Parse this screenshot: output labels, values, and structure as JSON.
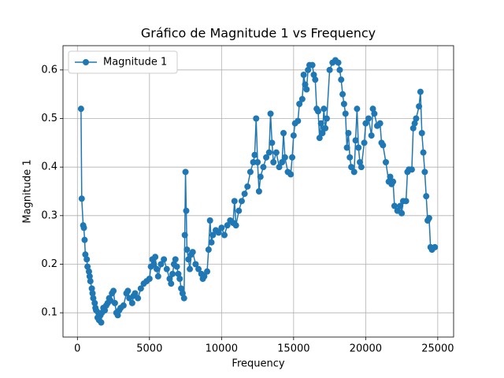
{
  "chart_data": {
    "type": "line",
    "title": "Gráfico de Magnitude 1 vs Frequency",
    "x_label": "Frequency",
    "y_label": "Magnitude 1",
    "x": [
      250,
      300,
      400,
      450,
      500,
      550,
      650,
      700,
      800,
      850,
      900,
      1000,
      1050,
      1100,
      1200,
      1250,
      1300,
      1400,
      1450,
      1500,
      1600,
      1650,
      1700,
      1800,
      1900,
      2000,
      2100,
      2200,
      2300,
      2400,
      2500,
      2600,
      2700,
      2800,
      2900,
      3000,
      3200,
      3400,
      3500,
      3600,
      3800,
      3900,
      4000,
      4200,
      4400,
      4600,
      4800,
      5000,
      5100,
      5200,
      5300,
      5400,
      5500,
      5600,
      5800,
      6000,
      6200,
      6400,
      6500,
      6600,
      6700,
      6800,
      6900,
      7000,
      7100,
      7200,
      7300,
      7400,
      7450,
      7500,
      7550,
      7600,
      7700,
      7800,
      7900,
      8000,
      8200,
      8400,
      8600,
      8700,
      8800,
      9000,
      9100,
      9200,
      9300,
      9400,
      9600,
      9800,
      10000,
      10200,
      10400,
      10600,
      10800,
      10900,
      11000,
      11200,
      11400,
      11600,
      11800,
      12000,
      12200,
      12300,
      12400,
      12500,
      12600,
      12700,
      12900,
      13100,
      13300,
      13400,
      13500,
      13600,
      13800,
      14000,
      14200,
      14300,
      14400,
      14600,
      14800,
      14900,
      15000,
      15100,
      15300,
      15400,
      15600,
      15700,
      15800,
      15900,
      16000,
      16100,
      16300,
      16400,
      16500,
      16600,
      16700,
      16800,
      16900,
      17000,
      17100,
      17200,
      17300,
      17500,
      17700,
      17900,
      18100,
      18200,
      18300,
      18400,
      18500,
      18600,
      18700,
      18800,
      18900,
      19000,
      19200,
      19300,
      19400,
      19500,
      19600,
      19700,
      19900,
      20000,
      20200,
      20400,
      20500,
      20600,
      20800,
      21000,
      21100,
      21200,
      21400,
      21600,
      21700,
      21800,
      21900,
      22000,
      22200,
      22400,
      22500,
      22600,
      22800,
      22900,
      23000,
      23200,
      23300,
      23400,
      23500,
      23700,
      23800,
      23900,
      24000,
      24100,
      24200,
      24300,
      24400,
      24500,
      24600,
      24800
    ],
    "series": [
      {
        "name": "Magnitude 1",
        "color": "#1f77b4",
        "values": [
          0.52,
          0.335,
          0.28,
          0.275,
          0.25,
          0.22,
          0.21,
          0.195,
          0.185,
          0.175,
          0.165,
          0.15,
          0.14,
          0.13,
          0.12,
          0.11,
          0.105,
          0.09,
          0.1,
          0.085,
          0.095,
          0.08,
          0.1,
          0.11,
          0.105,
          0.115,
          0.12,
          0.13,
          0.125,
          0.14,
          0.145,
          0.12,
          0.1,
          0.095,
          0.105,
          0.11,
          0.115,
          0.14,
          0.145,
          0.13,
          0.12,
          0.135,
          0.14,
          0.13,
          0.15,
          0.16,
          0.165,
          0.17,
          0.195,
          0.21,
          0.2,
          0.215,
          0.19,
          0.175,
          0.2,
          0.21,
          0.19,
          0.17,
          0.16,
          0.18,
          0.2,
          0.21,
          0.195,
          0.18,
          0.17,
          0.15,
          0.14,
          0.13,
          0.26,
          0.39,
          0.31,
          0.23,
          0.21,
          0.19,
          0.22,
          0.225,
          0.2,
          0.19,
          0.18,
          0.17,
          0.175,
          0.185,
          0.23,
          0.29,
          0.245,
          0.26,
          0.27,
          0.265,
          0.275,
          0.26,
          0.28,
          0.29,
          0.285,
          0.33,
          0.28,
          0.31,
          0.33,
          0.345,
          0.36,
          0.39,
          0.41,
          0.425,
          0.5,
          0.41,
          0.35,
          0.38,
          0.4,
          0.42,
          0.43,
          0.51,
          0.45,
          0.41,
          0.43,
          0.4,
          0.41,
          0.47,
          0.42,
          0.39,
          0.385,
          0.42,
          0.465,
          0.49,
          0.495,
          0.53,
          0.54,
          0.59,
          0.57,
          0.56,
          0.6,
          0.61,
          0.61,
          0.59,
          0.58,
          0.52,
          0.515,
          0.46,
          0.49,
          0.47,
          0.52,
          0.48,
          0.5,
          0.6,
          0.615,
          0.62,
          0.615,
          0.6,
          0.58,
          0.55,
          0.53,
          0.51,
          0.44,
          0.47,
          0.42,
          0.4,
          0.39,
          0.455,
          0.52,
          0.44,
          0.41,
          0.4,
          0.45,
          0.49,
          0.5,
          0.465,
          0.52,
          0.51,
          0.485,
          0.49,
          0.45,
          0.445,
          0.41,
          0.37,
          0.38,
          0.365,
          0.37,
          0.32,
          0.31,
          0.32,
          0.305,
          0.33,
          0.33,
          0.39,
          0.395,
          0.395,
          0.48,
          0.49,
          0.5,
          0.525,
          0.555,
          0.47,
          0.43,
          0.39,
          0.34,
          0.29,
          0.295,
          0.235,
          0.23,
          0.235
        ]
      }
    ],
    "xlim": [
      -1000,
      26100
    ],
    "ylim": [
      0.05,
      0.65
    ],
    "xticks": [
      0,
      5000,
      10000,
      15000,
      20000,
      25000
    ],
    "yticks": [
      0.1,
      0.2,
      0.3,
      0.4,
      0.5,
      0.6
    ],
    "grid": true,
    "legend": "upper left"
  }
}
